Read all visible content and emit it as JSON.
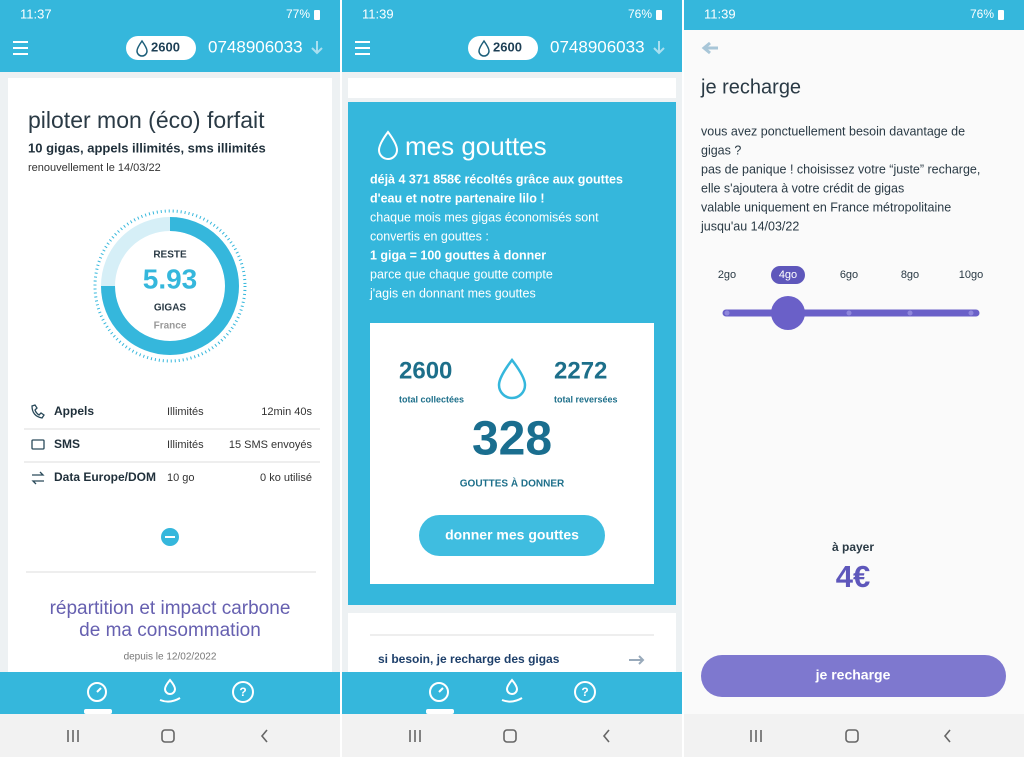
{
  "screen1": {
    "status": {
      "time": "11:37",
      "battery": "77%"
    },
    "header": {
      "drops": "2600",
      "phone": "0748906033"
    },
    "title": "piloter mon (éco) forfait",
    "plan": "10 gigas, appels illimités, sms illimités",
    "renewal": "renouvellement le 14/03/22",
    "gauge": {
      "label": "RESTE",
      "value": "5.93",
      "unit": "GIGAS",
      "zone": "France"
    },
    "usage": [
      [
        "Appels",
        "Illimités",
        "12min 40s"
      ],
      [
        "SMS",
        "Illimités",
        "15 SMS envoyés"
      ],
      [
        "Data Europe/DOM",
        "10 go",
        "0 ko utilisé"
      ]
    ],
    "section_title": [
      "répartition et impact carbone",
      "de ma consommation"
    ],
    "since": "depuis le 12/02/2022"
  },
  "screen2": {
    "status": {
      "time": "11:39",
      "battery": "76%"
    },
    "header": {
      "drops": "2600",
      "phone": "0748906033"
    },
    "title": "mes gouttes",
    "lines": [
      {
        "text": "déjà 4 371 858€ récoltés grâce aux gouttes",
        "bold": true
      },
      {
        "text": "d'eau et notre partenaire lilo !",
        "bold": true
      },
      {
        "text": "chaque mois mes gigas économisés sont",
        "bold": false
      },
      {
        "text": "convertis en gouttes :",
        "bold": false
      },
      {
        "text": "1 giga = 100 gouttes à donner",
        "bold": true
      },
      {
        "text": "parce que chaque goutte compte",
        "bold": false
      },
      {
        "text": "j'agis en donnant mes gouttes",
        "bold": false
      }
    ],
    "collected": {
      "value": "2600",
      "label": "total collectées"
    },
    "given": {
      "value": "2272",
      "label": "total reversées"
    },
    "to_give": {
      "value": "328",
      "label": "GOUTTES À DONNER"
    },
    "button": "donner mes gouttes",
    "link": "si besoin, je recharge des gigas"
  },
  "screen3": {
    "status": {
      "time": "11:39",
      "battery": "76%"
    },
    "title": "je recharge",
    "lines": [
      "vous avez ponctuellement besoin davantage de",
      "gigas ?",
      "pas de panique ! choisissez votre “juste” recharge,",
      "elle s'ajoutera à votre crédit de gigas",
      "valable uniquement en France métropolitaine",
      "jusqu'au 14/03/22"
    ],
    "options": [
      "2go",
      "4go",
      "6go",
      "8go",
      "10go"
    ],
    "selected_index": 1,
    "price_label": "à payer",
    "price": "4€",
    "button": "je recharge"
  }
}
